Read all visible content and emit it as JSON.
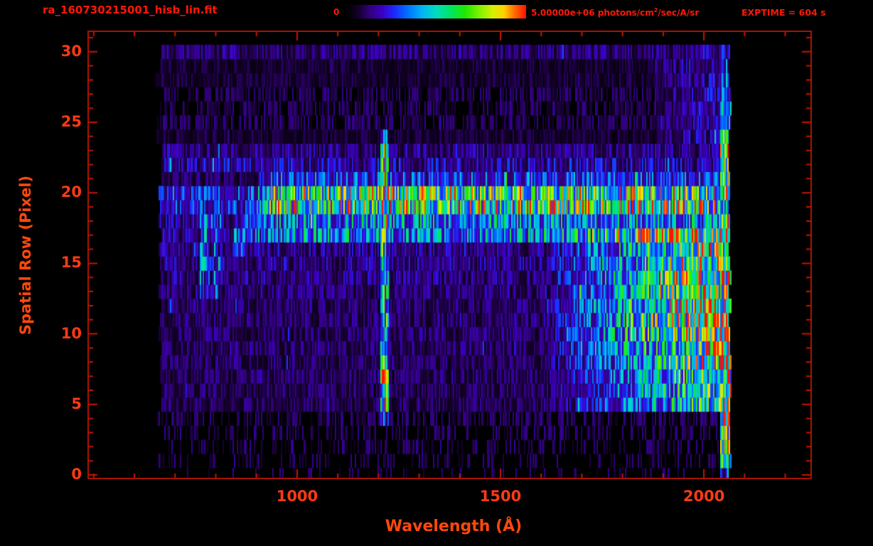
{
  "header": {
    "filename": "ra_160730215001_hisb_lin.fit",
    "exptime": "EXPTIME = 604 s",
    "colorbar": {
      "min_label": "0",
      "max_value": "5.00000e+06",
      "units_prefix": " photons/cm",
      "units_sup": "2",
      "units_suffix": "/sec/A/sr"
    }
  },
  "colors": {
    "background": "#000000",
    "frame": "#a81200",
    "tick": "#c81400",
    "tick_label": "#ff3a14",
    "axis_title": "#ff480c",
    "header_text": "#ff1708"
  },
  "chart_data": {
    "type": "heatmap",
    "title": "ra_160730215001_hisb_lin.fit",
    "xlabel": "Wavelength (Å)",
    "ylabel": "Spatial Row (Pixel)",
    "xlim": [
      488,
      2262
    ],
    "ylim": [
      -0.2,
      31.4
    ],
    "x_ticks": [
      1000,
      1500,
      2000
    ],
    "y_ticks": [
      0,
      5,
      10,
      15,
      20,
      25,
      30
    ],
    "x_minor_step": 100,
    "y_minor_step": 1,
    "color_scale": {
      "min": 0,
      "max": 5000000,
      "units": "photons/cm2/sec/A/sr",
      "colormap": "rainbow",
      "colormap_stops": [
        [
          0.0,
          "#000000"
        ],
        [
          0.06,
          "#120026"
        ],
        [
          0.13,
          "#32007d"
        ],
        [
          0.2,
          "#3a00c8"
        ],
        [
          0.27,
          "#1c2cff"
        ],
        [
          0.34,
          "#0070ff"
        ],
        [
          0.42,
          "#00b4f5"
        ],
        [
          0.5,
          "#00ddc0"
        ],
        [
          0.58,
          "#00e463"
        ],
        [
          0.66,
          "#1fe800"
        ],
        [
          0.74,
          "#7df200"
        ],
        [
          0.82,
          "#d8f000"
        ],
        [
          0.88,
          "#ffd000"
        ],
        [
          0.93,
          "#ff7800"
        ],
        [
          1.0,
          "#ff1200"
        ]
      ]
    },
    "data_extent": {
      "wavelength": [
        660,
        2064
      ],
      "rows": [
        0,
        30
      ]
    },
    "row_base_levels": [
      0.012,
      0.02,
      0.028,
      0.03,
      0.04,
      0.09,
      0.09,
      0.095,
      0.095,
      0.1,
      0.1,
      0.1,
      0.105,
      0.11,
      0.12,
      0.13,
      0.13,
      0.33,
      0.33,
      0.55,
      0.55,
      0.24,
      0.16,
      0.12,
      0.06,
      0.05,
      0.045,
      0.045,
      0.06,
      0.06,
      0.11
    ],
    "features": [
      {
        "name": "spectral-trace",
        "rows": [
          17,
          21
        ],
        "wavelength": [
          660,
          2064
        ],
        "peak_row": 19.5,
        "intensity": 0.55,
        "fade_below_wavelength": 930
      },
      {
        "name": "lyman-alpha-emission",
        "wavelength": [
          1206,
          1224
        ],
        "rows": [
          4,
          24
        ],
        "center": 1215,
        "intensity": 0.45
      },
      {
        "name": "long-wavelength-continuum",
        "wavelength": [
          1600,
          2064
        ],
        "rows": [
          4.5,
          17.5
        ],
        "max_intensity": 0.6,
        "center_row": 11.5
      },
      {
        "name": "right-edge-bright-column",
        "wavelength": [
          2040,
          2064
        ],
        "rows": [
          1,
          24
        ],
        "intensity": 0.6,
        "red_spike_probability": 0.05
      },
      {
        "name": "diagonal-feature",
        "from": [
          845,
          16.3
        ],
        "to": [
          960,
          19.5
        ],
        "intensity": 0.3
      },
      {
        "name": "arc-feature",
        "wavelength": [
          762,
          815
        ],
        "rows": [
          13,
          18.5
        ],
        "intensity": 0.2
      },
      {
        "name": "bright-dash",
        "wavelength": [
          767,
          778
        ],
        "rows": [
          15,
          18
        ],
        "intensity": 0.36
      },
      {
        "name": "upper-right-noise",
        "wavelength": [
          1880,
          2064
        ],
        "rows": [
          24,
          30
        ],
        "intensity": 0.19
      }
    ]
  }
}
